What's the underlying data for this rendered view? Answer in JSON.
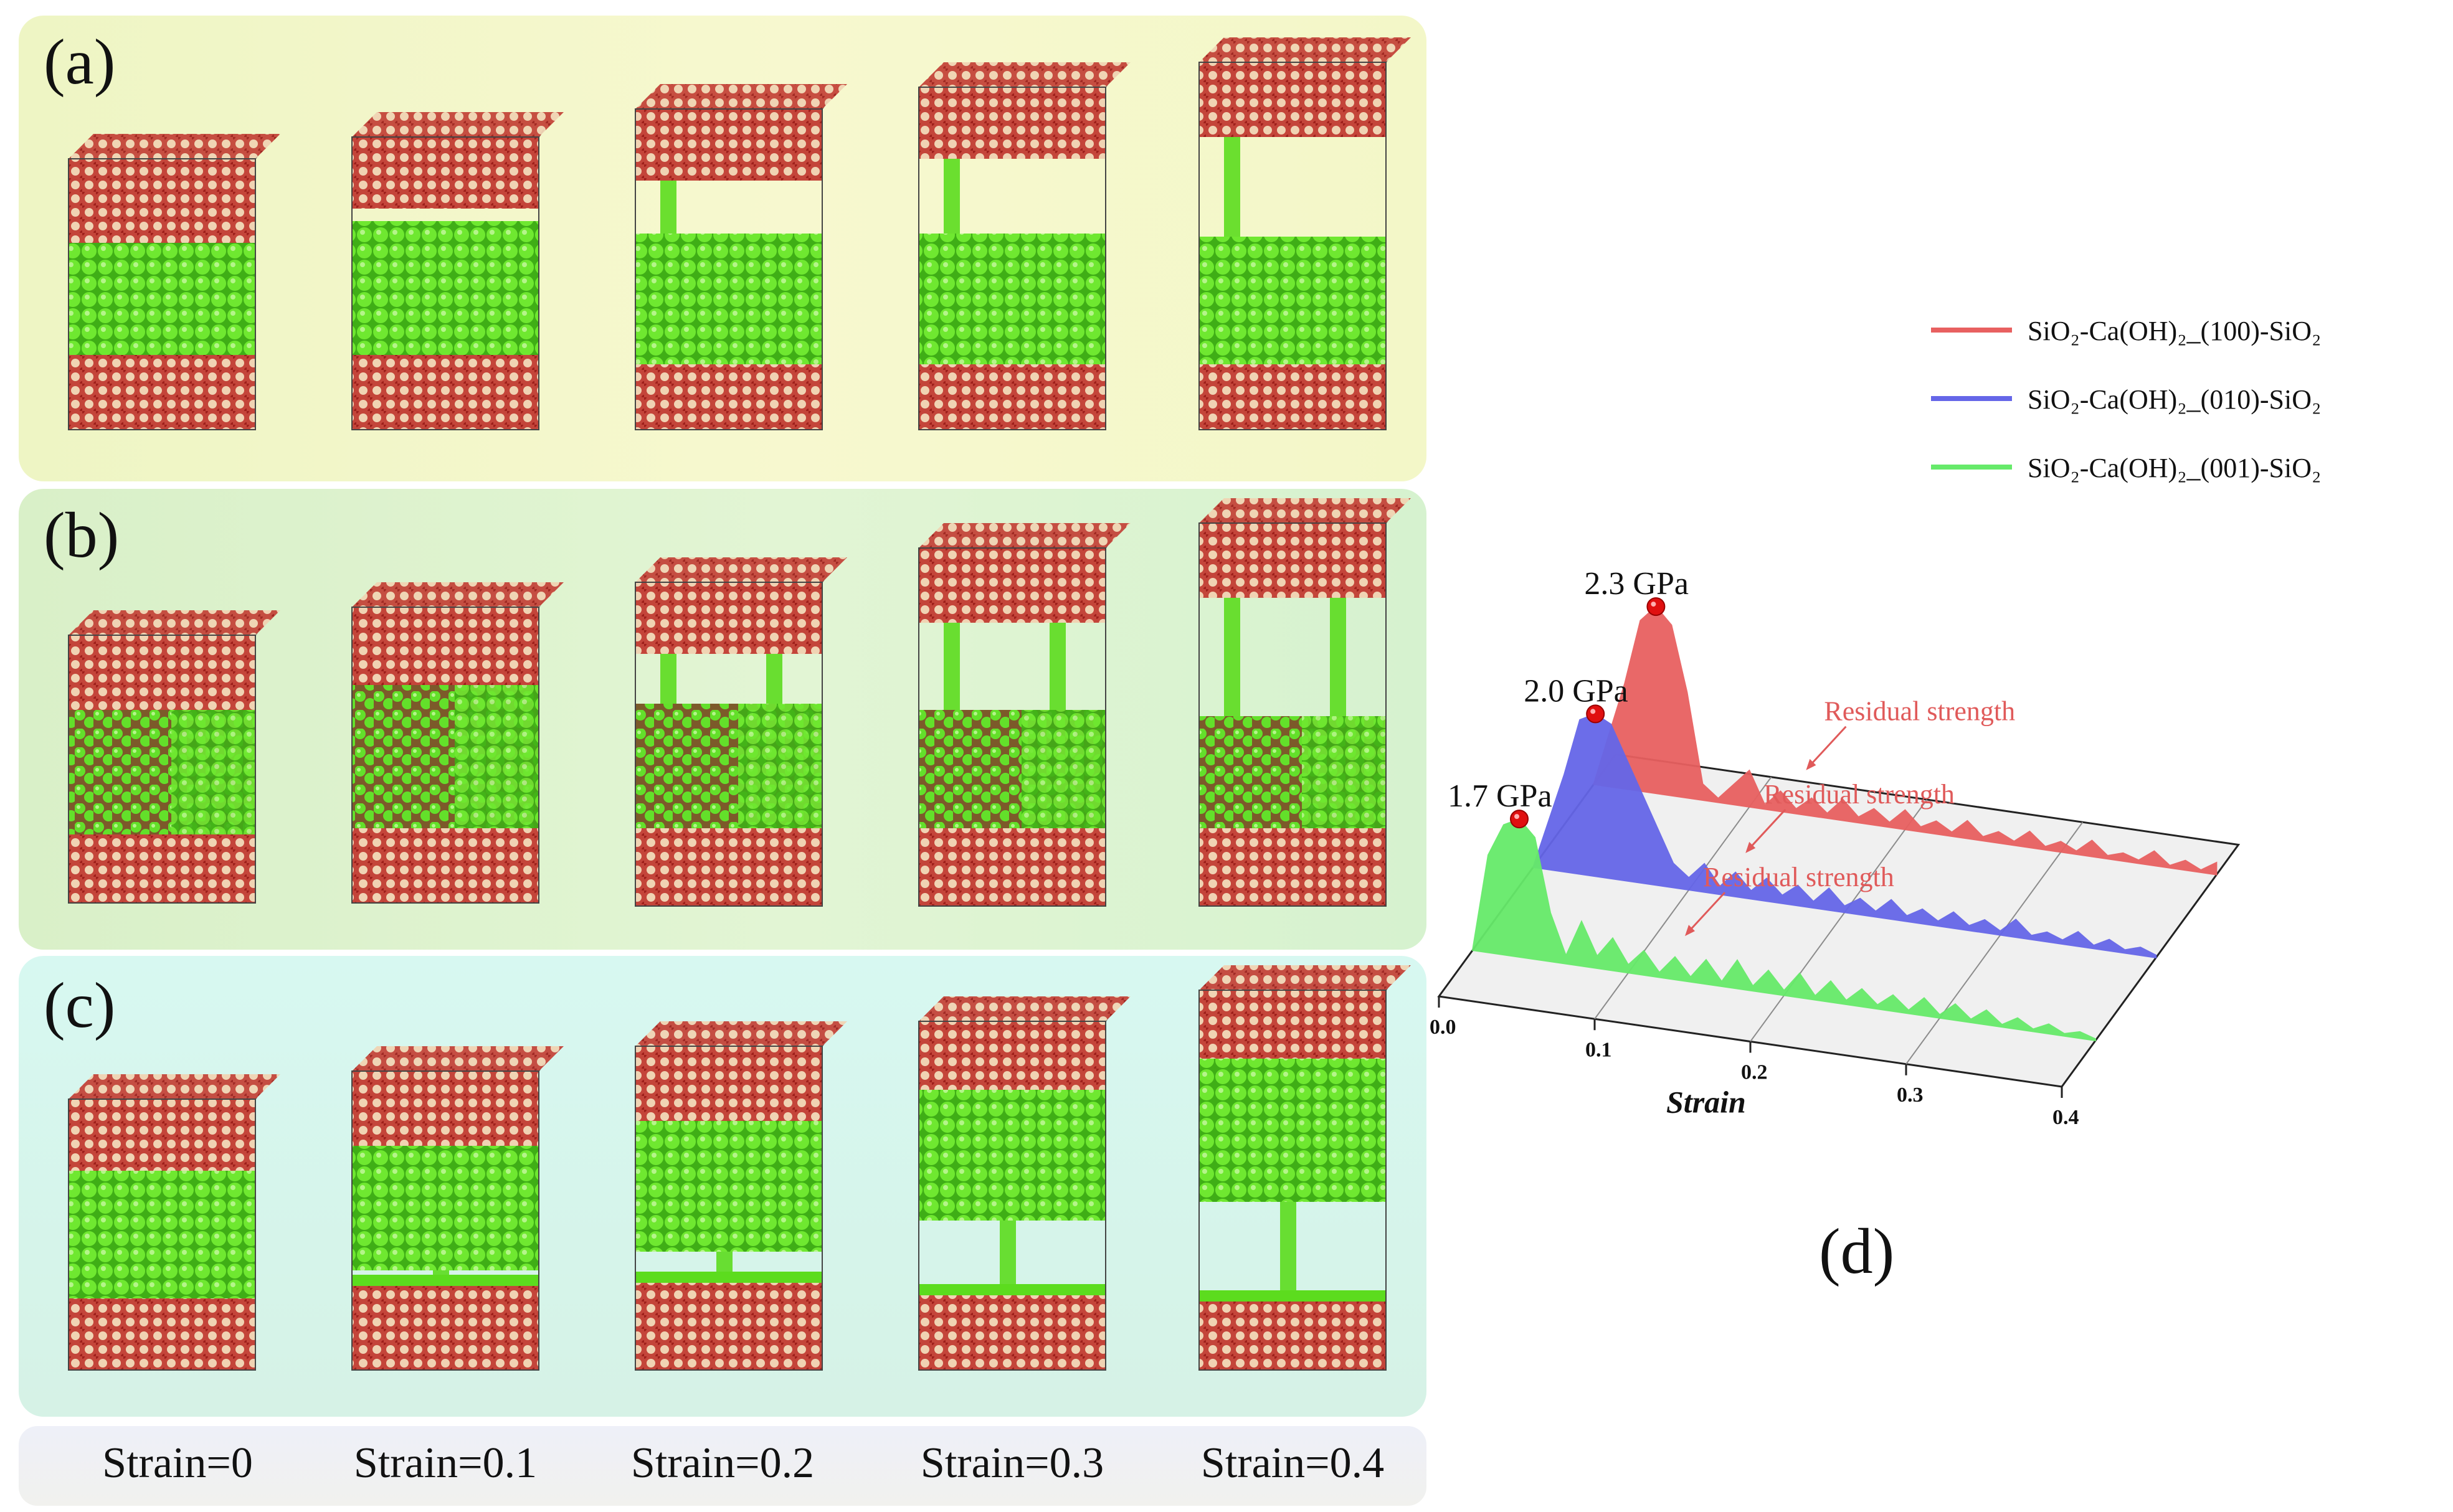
{
  "panels": {
    "a": "(a)",
    "b": "(b)",
    "c": "(c)",
    "d": "(d)"
  },
  "strain_labels": [
    "Strain=0",
    "Strain=0.1",
    "Strain=0.2",
    "Strain=0.3",
    "Strain=0.4"
  ],
  "simulation_images": {
    "description_names": [
      "snapshot-strain-0",
      "snapshot-strain-0.1",
      "snapshot-strain-0.2",
      "snapshot-strain-0.3",
      "snapshot-strain-0.4"
    ],
    "colors": {
      "silica_red": "#b8312a",
      "silica_tan": "#e9c9a8",
      "portlandite_green": "#5cdc1e"
    }
  },
  "chart_data": {
    "type": "area",
    "xlabel": "Strain",
    "ylabel": "",
    "x_ticks": [
      "0.0",
      "0.1",
      "0.2",
      "0.3",
      "0.4"
    ],
    "xlim": [
      0,
      0.4
    ],
    "series": [
      {
        "name": "SiO₂-Ca(OH)₂_(100)-SiO₂",
        "color": "#e86060",
        "peak_label": "2.3 GPa",
        "peak_value": 2.3,
        "annotation": "Residual strength",
        "x": [
          0.0,
          0.02,
          0.03,
          0.04,
          0.05,
          0.06,
          0.07,
          0.08,
          0.1,
          0.11,
          0.12,
          0.13,
          0.14,
          0.15,
          0.16,
          0.17,
          0.18,
          0.19,
          0.2,
          0.21,
          0.22,
          0.23,
          0.24,
          0.25,
          0.26,
          0.27,
          0.28,
          0.29,
          0.3,
          0.31,
          0.32,
          0.33,
          0.34,
          0.35,
          0.36,
          0.37,
          0.38,
          0.39,
          0.4
        ],
        "values": [
          0.0,
          1.3,
          2.1,
          2.3,
          2.1,
          1.3,
          0.2,
          0.05,
          0.45,
          0.05,
          0.25,
          0.06,
          0.22,
          0.06,
          0.26,
          0.07,
          0.2,
          0.06,
          0.24,
          0.06,
          0.16,
          0.05,
          0.22,
          0.05,
          0.14,
          0.05,
          0.2,
          0.04,
          0.13,
          0.04,
          0.2,
          0.04,
          0.1,
          0.04,
          0.18,
          0.03,
          0.12,
          0.03,
          0.15
        ]
      },
      {
        "name": "SiO₂-Ca(OH)₂_(010)-SiO₂",
        "color": "#6566e8",
        "peak_label": "2.0 GPa",
        "peak_value": 2.0,
        "annotation": "Residual strength",
        "x": [
          0.0,
          0.02,
          0.03,
          0.04,
          0.05,
          0.06,
          0.07,
          0.08,
          0.09,
          0.1,
          0.11,
          0.12,
          0.13,
          0.14,
          0.15,
          0.16,
          0.17,
          0.18,
          0.19,
          0.2,
          0.21,
          0.22,
          0.23,
          0.24,
          0.25,
          0.26,
          0.27,
          0.28,
          0.29,
          0.3,
          0.31,
          0.32,
          0.33,
          0.34,
          0.35,
          0.36,
          0.37,
          0.38,
          0.39,
          0.4
        ],
        "values": [
          0.0,
          1.2,
          1.9,
          2.0,
          1.9,
          1.5,
          1.1,
          0.7,
          0.3,
          0.15,
          0.35,
          0.1,
          0.3,
          0.1,
          0.28,
          0.1,
          0.25,
          0.08,
          0.27,
          0.08,
          0.2,
          0.07,
          0.24,
          0.07,
          0.18,
          0.06,
          0.2,
          0.06,
          0.16,
          0.05,
          0.22,
          0.05,
          0.12,
          0.05,
          0.18,
          0.04,
          0.14,
          0.04,
          0.1,
          0.03
        ]
      },
      {
        "name": "SiO₂-Ca(OH)₂_(001)-SiO₂",
        "color": "#66ea6a",
        "peak_label": "1.7 GPa",
        "peak_value": 1.7,
        "annotation": "Residual strength",
        "x": [
          0.0,
          0.01,
          0.02,
          0.03,
          0.04,
          0.05,
          0.06,
          0.07,
          0.08,
          0.09,
          0.1,
          0.11,
          0.12,
          0.13,
          0.14,
          0.15,
          0.16,
          0.17,
          0.18,
          0.19,
          0.2,
          0.21,
          0.22,
          0.23,
          0.24,
          0.25,
          0.26,
          0.27,
          0.28,
          0.29,
          0.3,
          0.31,
          0.32,
          0.33,
          0.34,
          0.35,
          0.36,
          0.37,
          0.38,
          0.39,
          0.4
        ],
        "values": [
          0.0,
          1.2,
          1.6,
          1.7,
          1.5,
          0.6,
          0.1,
          0.55,
          0.15,
          0.4,
          0.1,
          0.3,
          0.06,
          0.28,
          0.06,
          0.3,
          0.06,
          0.35,
          0.06,
          0.28,
          0.06,
          0.3,
          0.05,
          0.26,
          0.05,
          0.22,
          0.05,
          0.2,
          0.04,
          0.22,
          0.04,
          0.2,
          0.04,
          0.18,
          0.03,
          0.14,
          0.03,
          0.12,
          0.03,
          0.08,
          0.02
        ]
      }
    ]
  }
}
